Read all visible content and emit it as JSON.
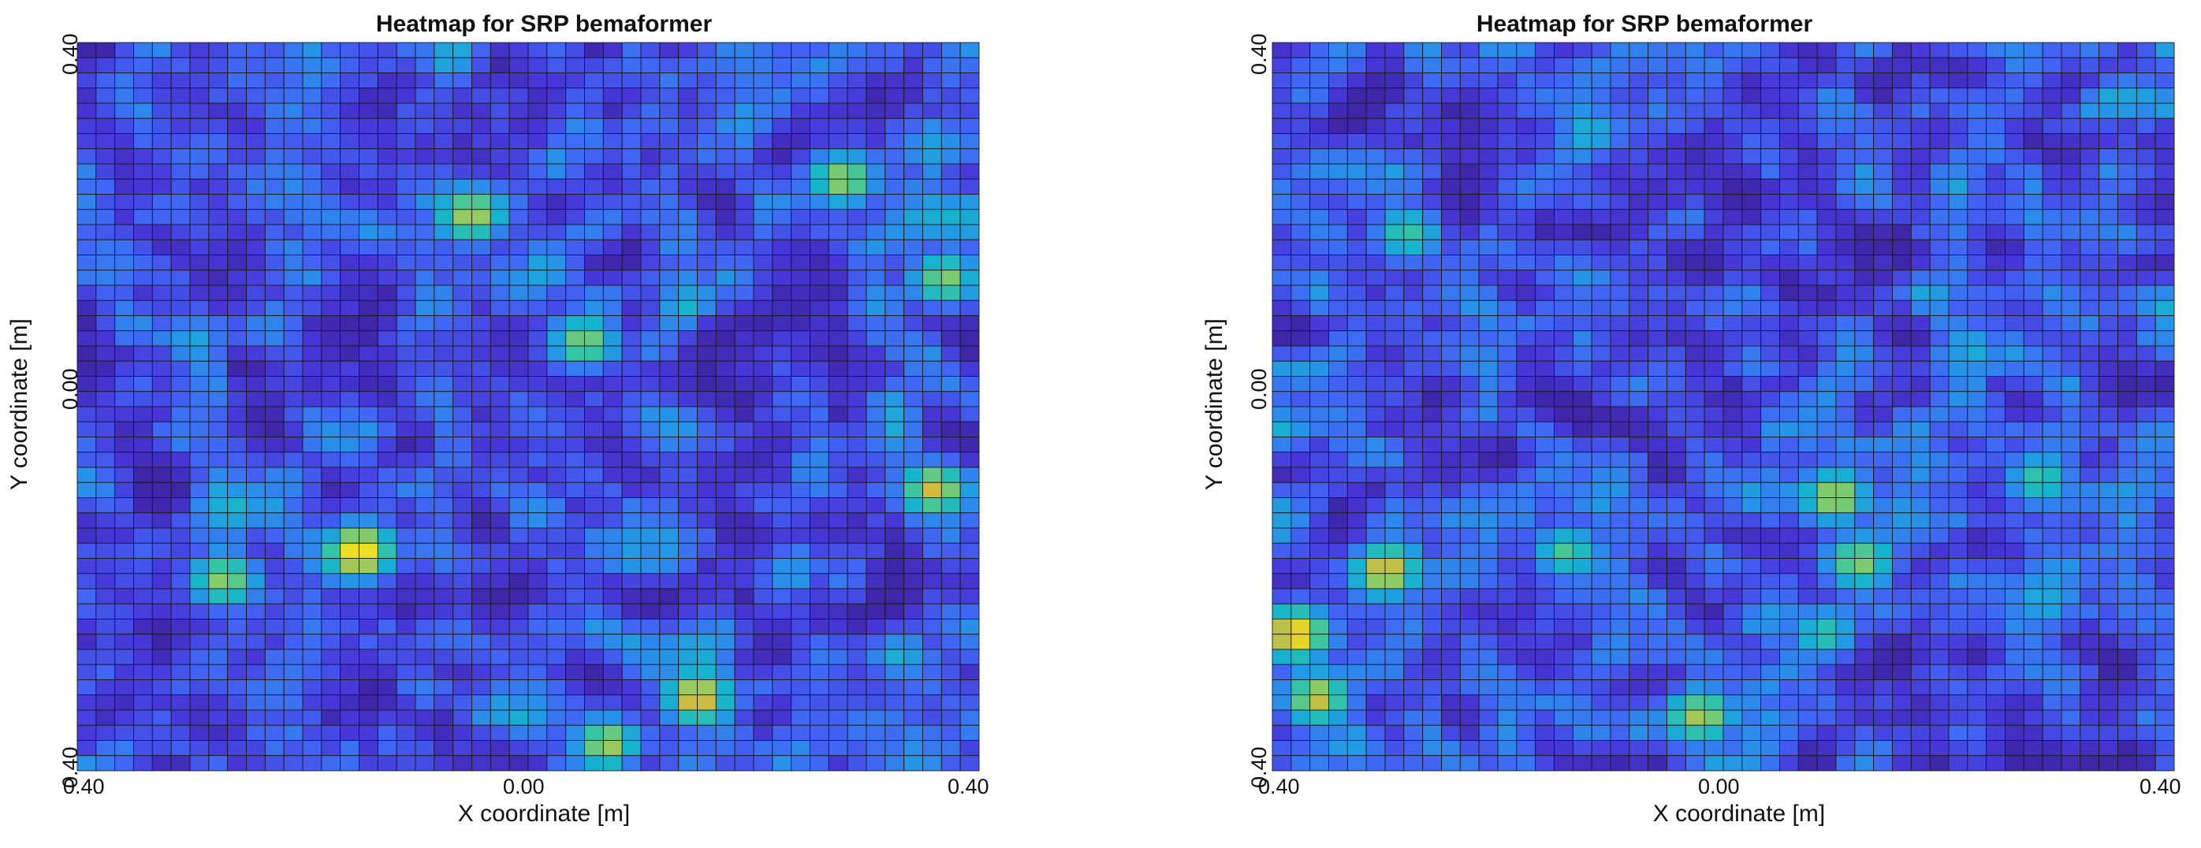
{
  "chart_data": [
    {
      "type": "heatmap",
      "title": "Heatmap for SRP bemaformer",
      "xlabel": "X coordinate [m]",
      "ylabel": "Y coordinate [m]",
      "x_ticks": [
        "0.40",
        "0.00",
        "0.40"
      ],
      "y_ticks": [
        "0.40",
        "0.00",
        "0.40"
      ],
      "grid_size": [
        48,
        48
      ],
      "colormap": "parula",
      "cell_edge_color": "#1a1a1a",
      "hotspots": [
        {
          "x": -0.15,
          "y": -0.16,
          "level": 1.0
        },
        {
          "x": 0.15,
          "y": -0.32,
          "level": 0.92
        },
        {
          "x": 0.36,
          "y": -0.09,
          "level": 0.86
        },
        {
          "x": 0.07,
          "y": -0.37,
          "level": 0.8
        },
        {
          "x": -0.05,
          "y": 0.21,
          "level": 0.8
        },
        {
          "x": 0.28,
          "y": 0.25,
          "level": 0.78
        },
        {
          "x": -0.27,
          "y": -0.19,
          "level": 0.75
        },
        {
          "x": 0.05,
          "y": 0.07,
          "level": 0.74
        },
        {
          "x": 0.37,
          "y": 0.14,
          "level": 0.74
        }
      ]
    },
    {
      "type": "heatmap",
      "title": "Heatmap for SRP bemaformer",
      "xlabel": "X coordinate [m]",
      "ylabel": "Y coordinate [m]",
      "x_ticks": [
        "0.40",
        "0.00",
        "0.40"
      ],
      "y_ticks": [
        "0.40",
        "0.00",
        "0.40"
      ],
      "grid_size": [
        48,
        48
      ],
      "colormap": "parula",
      "cell_edge_color": "#1a1a1a",
      "hotspots": [
        {
          "x": -0.38,
          "y": -0.25,
          "level": 1.0
        },
        {
          "x": -0.3,
          "y": -0.18,
          "level": 0.9
        },
        {
          "x": -0.36,
          "y": -0.32,
          "level": 0.85
        },
        {
          "x": -0.02,
          "y": -0.34,
          "level": 0.8
        },
        {
          "x": 0.1,
          "y": -0.1,
          "level": 0.82
        },
        {
          "x": 0.12,
          "y": -0.17,
          "level": 0.75
        },
        {
          "x": -0.14,
          "y": -0.16,
          "level": 0.65
        },
        {
          "x": 0.28,
          "y": -0.08,
          "level": 0.62
        },
        {
          "x": -0.28,
          "y": 0.19,
          "level": 0.62
        },
        {
          "x": 0.09,
          "y": -0.25,
          "level": 0.6
        }
      ]
    }
  ]
}
